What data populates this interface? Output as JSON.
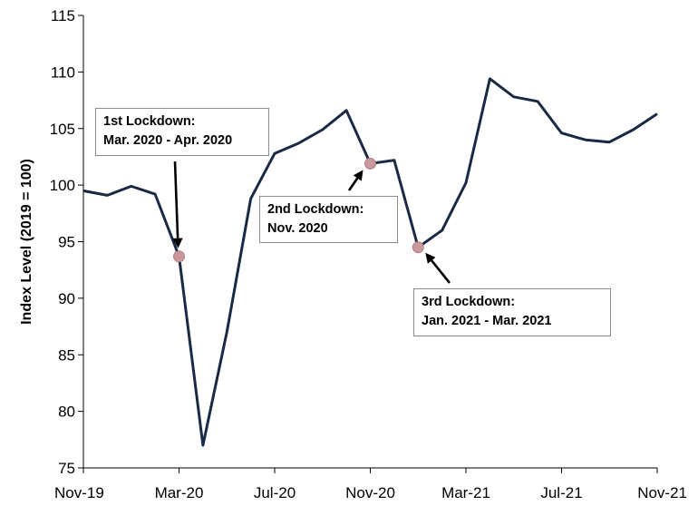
{
  "chart_data": {
    "type": "line",
    "title": "",
    "xlabel": "",
    "ylabel": "Index Level (2019 = 100)",
    "ylim": [
      75,
      115
    ],
    "yticks": [
      75,
      80,
      85,
      90,
      95,
      100,
      105,
      110,
      115
    ],
    "xtick_labels": [
      "Nov-19",
      "Mar-20",
      "Jul-20",
      "Nov-20",
      "Mar-21",
      "Jul-21",
      "Nov-21"
    ],
    "grid": false,
    "line_color": "#1b2a44",
    "marker_color": "#c9989c",
    "series": [
      {
        "x": [
          "Nov-19",
          "Dec-19",
          "Jan-20",
          "Feb-20",
          "Mar-20",
          "Apr-20",
          "May-20",
          "Jun-20",
          "Jul-20",
          "Aug-20",
          "Sep-20",
          "Oct-20",
          "Nov-20",
          "Dec-20",
          "Jan-21",
          "Feb-21",
          "Mar-21",
          "Apr-21",
          "May-21",
          "Jun-21",
          "Jul-21",
          "Aug-21",
          "Sep-21",
          "Oct-21",
          "Nov-21"
        ],
        "values": [
          99.5,
          99.1,
          99.9,
          99.2,
          93.7,
          77.0,
          87.0,
          98.8,
          102.8,
          103.7,
          104.9,
          106.6,
          101.9,
          102.2,
          94.5,
          96.0,
          100.2,
          109.4,
          107.8,
          107.4,
          104.6,
          104.0,
          103.8,
          104.9,
          106.3
        ]
      }
    ],
    "markers": [
      {
        "x": "Mar-20",
        "value": 93.7
      },
      {
        "x": "Nov-20",
        "value": 101.9
      },
      {
        "x": "Jan-21",
        "value": 94.5
      }
    ],
    "annotations": [
      {
        "line1": "1st Lockdown:",
        "line2": "Mar. 2020 - Apr. 2020"
      },
      {
        "line1": "2nd Lockdown:",
        "line2": "Nov. 2020"
      },
      {
        "line1": "3rd Lockdown:",
        "line2": "Jan. 2021 - Mar. 2021"
      }
    ]
  }
}
